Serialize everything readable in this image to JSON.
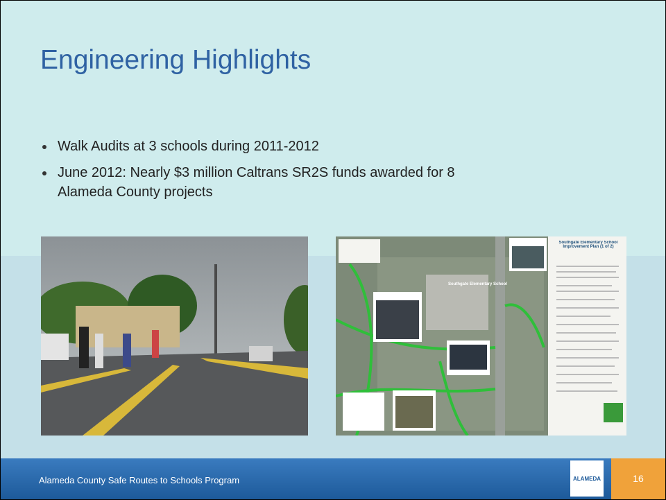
{
  "slide": {
    "title": "Engineering Highlights",
    "bullets": [
      "Walk Audits at 3 schools during 2011-2012",
      "June 2012: Nearly $3 million Caltrans SR2S funds awarded for 8 Alameda County projects"
    ],
    "map": {
      "heading": "Southgate Elementary School Improvement Plan (1 of 2)",
      "school_label": "Southgate Elementary School"
    },
    "footer": {
      "program": "Alameda County Safe Routes to Schools Program",
      "logo": "ALAMEDA",
      "page_number": "16"
    }
  }
}
